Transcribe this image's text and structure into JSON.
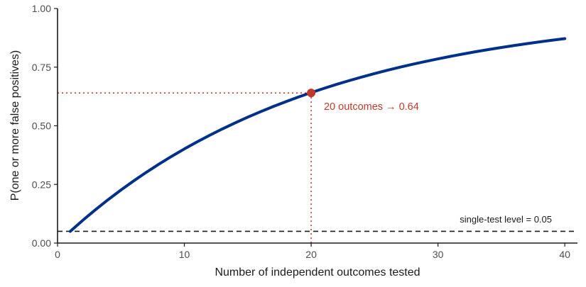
{
  "chart_data": {
    "type": "line",
    "title": "",
    "xlabel": "Number of independent outcomes tested",
    "ylabel": "P(one or more false positives)",
    "xlim": [
      0,
      41
    ],
    "ylim": [
      0,
      1
    ],
    "x_ticks": [
      0,
      10,
      20,
      30,
      40
    ],
    "x_tick_labels": [
      "0",
      "10",
      "20",
      "30",
      "40"
    ],
    "y_ticks": [
      0,
      0.25,
      0.5,
      0.75,
      1
    ],
    "y_tick_labels": [
      "0.00",
      "0.25",
      "0.50",
      "0.75",
      "1.00"
    ],
    "grid": false,
    "legend": "none",
    "series": [
      {
        "formula": "1 - (1 - 0.05)^n",
        "x": [
          1,
          2,
          3,
          4,
          5,
          6,
          7,
          8,
          9,
          10,
          11,
          12,
          13,
          14,
          15,
          16,
          17,
          18,
          19,
          20,
          21,
          22,
          23,
          24,
          25,
          26,
          27,
          28,
          29,
          30,
          31,
          32,
          33,
          34,
          35,
          36,
          37,
          38,
          39,
          40
        ],
        "y": [
          0.05,
          0.0975,
          0.1426,
          0.1855,
          0.2262,
          0.2649,
          0.3017,
          0.3366,
          0.3698,
          0.4013,
          0.4312,
          0.4596,
          0.4867,
          0.5123,
          0.5367,
          0.5599,
          0.5819,
          0.6028,
          0.6226,
          0.6415,
          0.6594,
          0.6765,
          0.6926,
          0.708,
          0.7226,
          0.7365,
          0.7497,
          0.7622,
          0.7741,
          0.7854,
          0.7961,
          0.8063,
          0.816,
          0.8252,
          0.8339,
          0.8422,
          0.8501,
          0.8576,
          0.8647,
          0.8715
        ],
        "color": "#003087"
      }
    ],
    "highlight_point": {
      "x": 20,
      "y": 0.64,
      "color": "#c0392b",
      "label": "20 outcomes → 0.64"
    },
    "reference_line": {
      "y": 0.05,
      "style": "dashed",
      "color": "#1a1a1a",
      "label": "single-test level = 0.05"
    }
  }
}
